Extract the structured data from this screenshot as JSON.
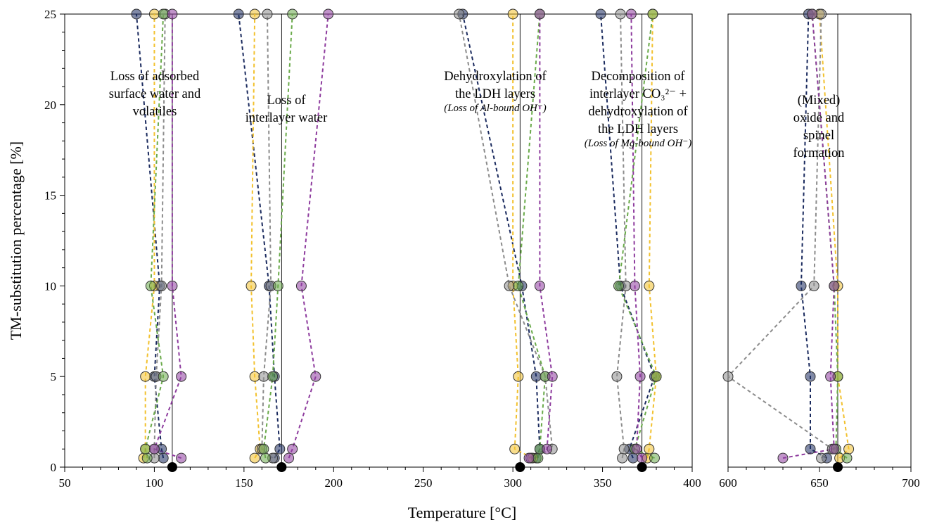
{
  "chart_data": {
    "type": "scatter",
    "xlabel": "Temperature [°C]",
    "ylabel": "TM-substitution percentage [%]",
    "ylim": [
      0,
      25
    ],
    "yticks": [
      0,
      5,
      10,
      15,
      20,
      25
    ],
    "y_levels": [
      0.5,
      1,
      5,
      10,
      25
    ],
    "panels": [
      {
        "xlim": [
          50,
          400
        ],
        "xticks": [
          50,
          100,
          150,
          200,
          250,
          300,
          350,
          400
        ]
      },
      {
        "xlim": [
          600,
          700
        ],
        "xticks": [
          600,
          650,
          700
        ]
      }
    ],
    "colors": {
      "navy": "#1a2a5e",
      "yellow": "#f2c12e",
      "gray": "#8c8c8c",
      "green": "#6aaa4a",
      "purple": "#8e3c9e",
      "black": "#000000"
    },
    "reference_lines": [
      {
        "panel": 0,
        "x": 110
      },
      {
        "panel": 0,
        "x": 171
      },
      {
        "panel": 0,
        "x": 304
      },
      {
        "panel": 0,
        "x": 372
      },
      {
        "panel": 1,
        "x": 660
      }
    ],
    "annotations": [
      {
        "panel": 0,
        "lines": [
          "Loss of adsorbed",
          "surface water and",
          "volatiles"
        ]
      },
      {
        "panel": 0,
        "lines": [
          "Loss of",
          "interlayer water"
        ]
      },
      {
        "panel": 0,
        "lines": [
          "Dehydroxylation of",
          "the LDH layers"
        ],
        "italic": "(Loss of Al-bound OH⁻)"
      },
      {
        "panel": 0,
        "lines": [
          "Decomposition of",
          "interlayer CO₃²⁻ +",
          "dehydroxylation of",
          "the LDH layers"
        ],
        "italic": "(Loss of Mg-bound OH⁻)"
      },
      {
        "panel": 1,
        "lines": [
          "(Mixed)",
          "oxide and",
          "spinel",
          "formation"
        ]
      }
    ],
    "series": [
      {
        "color": "navy",
        "panel": 0,
        "points": [
          [
            105,
            0.5
          ],
          [
            104,
            1
          ],
          [
            100,
            5
          ],
          [
            103,
            10
          ],
          [
            90,
            25
          ]
        ]
      },
      {
        "color": "yellow",
        "panel": 0,
        "points": [
          [
            94,
            0.5
          ],
          [
            95,
            1
          ],
          [
            95,
            5
          ],
          [
            100,
            10
          ],
          [
            100,
            25
          ]
        ]
      },
      {
        "color": "gray",
        "panel": 0,
        "points": [
          [
            100,
            0.5
          ],
          [
            100,
            1
          ],
          [
            101,
            5
          ],
          [
            104,
            10
          ],
          [
            106,
            25
          ]
        ]
      },
      {
        "color": "green",
        "panel": 0,
        "points": [
          [
            96,
            0.5
          ],
          [
            95,
            1
          ],
          [
            105,
            5
          ],
          [
            98,
            10
          ],
          [
            105,
            25
          ]
        ]
      },
      {
        "color": "purple",
        "panel": 0,
        "points": [
          [
            115,
            0.5
          ],
          [
            100,
            1
          ],
          [
            115,
            5
          ],
          [
            110,
            10
          ],
          [
            110,
            25
          ]
        ]
      },
      {
        "color": "navy",
        "panel": 0,
        "points": [
          [
            167,
            0.5
          ],
          [
            170,
            1
          ],
          [
            167,
            5
          ],
          [
            164,
            10
          ],
          [
            147,
            25
          ]
        ]
      },
      {
        "color": "yellow",
        "panel": 0,
        "points": [
          [
            156,
            0.5
          ],
          [
            159,
            1
          ],
          [
            156,
            5
          ],
          [
            154,
            10
          ],
          [
            156,
            25
          ]
        ]
      },
      {
        "color": "gray",
        "panel": 0,
        "points": [
          [
            166,
            0.5
          ],
          [
            160,
            1
          ],
          [
            161,
            5
          ],
          [
            165,
            10
          ],
          [
            163,
            25
          ]
        ]
      },
      {
        "color": "green",
        "panel": 0,
        "points": [
          [
            162,
            0.5
          ],
          [
            161,
            1
          ],
          [
            166,
            5
          ],
          [
            169,
            10
          ],
          [
            177,
            25
          ]
        ]
      },
      {
        "color": "purple",
        "panel": 0,
        "points": [
          [
            175,
            0.5
          ],
          [
            177,
            1
          ],
          [
            190,
            5
          ],
          [
            182,
            10
          ],
          [
            197,
            25
          ]
        ]
      },
      {
        "color": "navy",
        "panel": 0,
        "points": [
          [
            313,
            0.5
          ],
          [
            315,
            1
          ],
          [
            313,
            5
          ],
          [
            305,
            10
          ],
          [
            272,
            25
          ]
        ]
      },
      {
        "color": "yellow",
        "panel": 0,
        "points": [
          [
            311,
            0.5
          ],
          [
            301,
            1
          ],
          [
            303,
            5
          ],
          [
            300,
            10
          ],
          [
            300,
            25
          ]
        ]
      },
      {
        "color": "gray",
        "panel": 0,
        "points": [
          [
            310,
            0.5
          ],
          [
            322,
            1
          ],
          [
            318,
            5
          ],
          [
            298,
            10
          ],
          [
            270,
            25
          ]
        ]
      },
      {
        "color": "green",
        "panel": 0,
        "points": [
          [
            314,
            0.5
          ],
          [
            315,
            1
          ],
          [
            318,
            5
          ],
          [
            303,
            10
          ],
          [
            315,
            25
          ]
        ]
      },
      {
        "color": "purple",
        "panel": 0,
        "points": [
          [
            309,
            0.5
          ],
          [
            319,
            1
          ],
          [
            322,
            5
          ],
          [
            315,
            10
          ],
          [
            315,
            25
          ]
        ]
      },
      {
        "color": "navy",
        "panel": 0,
        "points": [
          [
            367,
            0.5
          ],
          [
            365,
            1
          ],
          [
            379,
            5
          ],
          [
            360,
            10
          ],
          [
            349,
            25
          ]
        ]
      },
      {
        "color": "yellow",
        "panel": 0,
        "points": [
          [
            375,
            0.5
          ],
          [
            376,
            1
          ],
          [
            380,
            5
          ],
          [
            376,
            10
          ],
          [
            378,
            25
          ]
        ]
      },
      {
        "color": "gray",
        "panel": 0,
        "points": [
          [
            361,
            0.5
          ],
          [
            362,
            1
          ],
          [
            358,
            5
          ],
          [
            363,
            10
          ],
          [
            360,
            25
          ]
        ]
      },
      {
        "color": "green",
        "panel": 0,
        "points": [
          [
            379,
            0.5
          ],
          [
            368,
            1
          ],
          [
            380,
            5
          ],
          [
            359,
            10
          ],
          [
            378,
            25
          ]
        ]
      },
      {
        "color": "purple",
        "panel": 0,
        "points": [
          [
            372,
            0.5
          ],
          [
            369,
            1
          ],
          [
            371,
            5
          ],
          [
            368,
            10
          ],
          [
            366,
            25
          ]
        ]
      },
      {
        "color": "navy",
        "panel": 1,
        "points": [
          [
            654,
            0.5
          ],
          [
            645,
            1
          ],
          [
            645,
            5
          ],
          [
            640,
            10
          ],
          [
            644,
            25
          ]
        ]
      },
      {
        "color": "yellow",
        "panel": 1,
        "points": [
          [
            661,
            0.5
          ],
          [
            666,
            1
          ],
          [
            660,
            5
          ],
          [
            660,
            10
          ],
          [
            650,
            25
          ]
        ]
      },
      {
        "color": "gray",
        "panel": 1,
        "points": [
          [
            651,
            0.5
          ],
          [
            657,
            1
          ],
          [
            600,
            5
          ],
          [
            647,
            10
          ],
          [
            651,
            25
          ]
        ]
      },
      {
        "color": "green",
        "panel": 1,
        "points": [
          [
            665,
            0.5
          ],
          [
            659,
            1
          ],
          [
            660,
            5
          ],
          [
            658,
            10
          ],
          [
            646,
            25
          ]
        ]
      },
      {
        "color": "purple",
        "panel": 1,
        "points": [
          [
            630,
            0.5
          ],
          [
            658,
            1
          ],
          [
            656,
            5
          ],
          [
            658,
            10
          ],
          [
            646,
            25
          ]
        ]
      }
    ],
    "reference_points": [
      {
        "panel": 0,
        "x": 110,
        "y": 0
      },
      {
        "panel": 0,
        "x": 171,
        "y": 0
      },
      {
        "panel": 0,
        "x": 304,
        "y": 0
      },
      {
        "panel": 0,
        "x": 372,
        "y": 0
      },
      {
        "panel": 1,
        "x": 660,
        "y": 0
      }
    ]
  }
}
